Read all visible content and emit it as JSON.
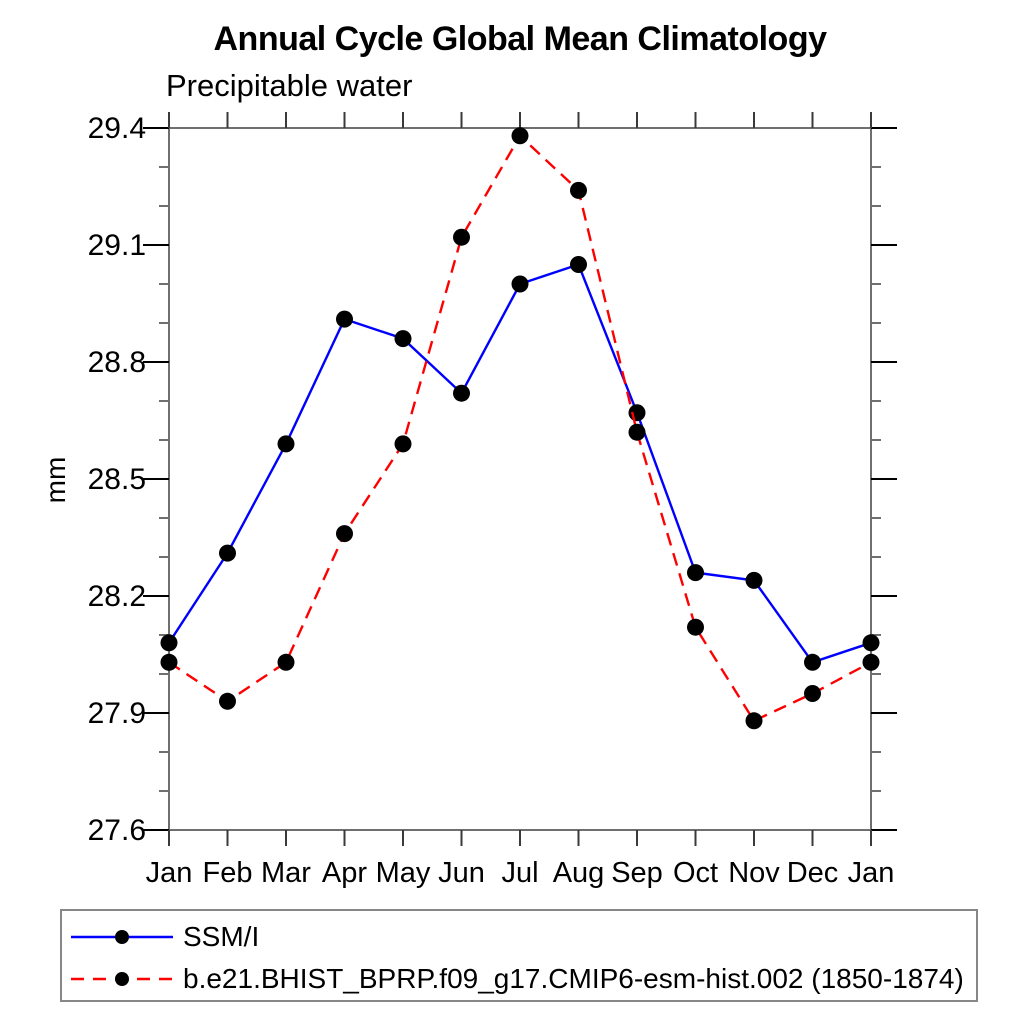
{
  "chart_data": {
    "type": "line",
    "title": "Annual Cycle Global Mean Climatology",
    "subtitle": "Precipitable water",
    "ylabel": "mm",
    "ylim": [
      27.6,
      29.4
    ],
    "ytick_major_step": 0.3,
    "ytick_minor_step": 0.1,
    "ytick_labels": [
      "27.6",
      "27.9",
      "28.2",
      "28.5",
      "28.8",
      "29.1",
      "29.4"
    ],
    "categories": [
      "Jan",
      "Feb",
      "Mar",
      "Apr",
      "May",
      "Jun",
      "Jul",
      "Aug",
      "Sep",
      "Oct",
      "Nov",
      "Dec",
      "Jan"
    ],
    "grid": false,
    "legend_position": "bottom-left-box",
    "series": [
      {
        "name": "SSM/I",
        "color": "#0000ff",
        "line_style": "solid",
        "marker": "filled-circle",
        "marker_color": "#000000",
        "values": [
          28.08,
          28.31,
          28.59,
          28.91,
          28.86,
          28.72,
          29.0,
          29.05,
          28.67,
          28.26,
          28.24,
          28.03,
          28.08
        ]
      },
      {
        "name": "b.e21.BHIST_BPRP.f09_g17.CMIP6-esm-hist.002 (1850-1874)",
        "color": "#ff0000",
        "line_style": "dashed",
        "marker": "filled-circle",
        "marker_color": "#000000",
        "values": [
          28.03,
          27.93,
          28.03,
          28.36,
          28.59,
          29.12,
          29.38,
          29.24,
          28.62,
          28.12,
          27.88,
          27.95,
          28.03
        ]
      }
    ],
    "colors": {
      "axis_frame": "#6f6f6f",
      "major_tick": "#000000",
      "month_tick": "#3a3a3a",
      "minor_tick": "#6f6f6f",
      "text": "#000000",
      "legend_border": "#878787"
    }
  }
}
